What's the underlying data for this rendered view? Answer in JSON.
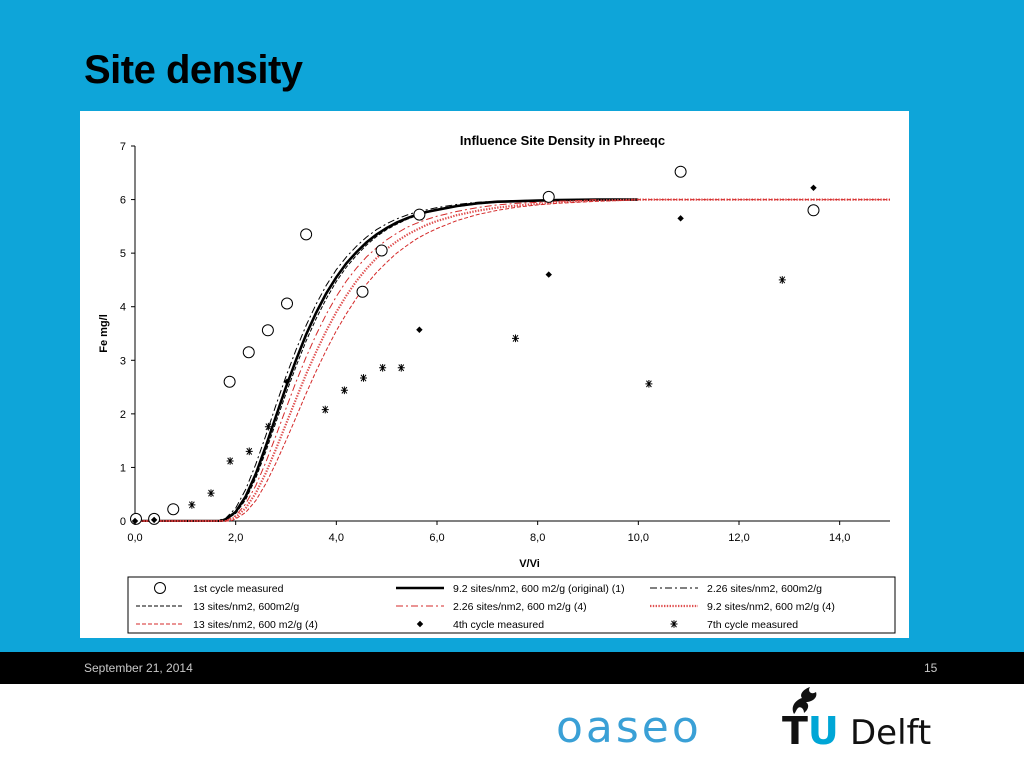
{
  "slide": {
    "title": "Site density",
    "footer_date": "September 21, 2014",
    "page_number": "15",
    "logo_left": "oaseo",
    "logo_right_tu": "TU",
    "logo_right_delft": "Delft",
    "background_color": "#0ea5d9"
  },
  "chart_data": {
    "type": "scatter",
    "title": "Influence Site Density in Phreeqc",
    "xlabel": "V/Vi",
    "ylabel": "Fe mg/l",
    "xlim": [
      0,
      15
    ],
    "ylim": [
      0,
      7
    ],
    "xticks": [
      0,
      2,
      4,
      6,
      8,
      10,
      12,
      14
    ],
    "xtick_labels": [
      "0,0",
      "2,0",
      "4,0",
      "6,0",
      "8,0",
      "10,0",
      "12,0",
      "14,0"
    ],
    "yticks": [
      0,
      1,
      2,
      3,
      4,
      5,
      6,
      7
    ],
    "ytick_labels": [
      "0",
      "1",
      "2",
      "3",
      "4",
      "5",
      "6",
      "7"
    ],
    "grid": false,
    "legend_position": "bottom",
    "series": [
      {
        "name": "1st cycle measured",
        "kind": "marker",
        "marker": "circle",
        "color": "#000000",
        "x": [
          0.02,
          0.38,
          0.76,
          1.88,
          2.26,
          2.64,
          3.02,
          3.4,
          4.52,
          4.9,
          5.65,
          8.22,
          10.84,
          13.48
        ],
        "y": [
          0.04,
          0.04,
          0.22,
          2.6,
          3.15,
          3.56,
          4.06,
          5.35,
          4.28,
          5.05,
          5.72,
          6.05,
          6.52,
          5.8
        ]
      },
      {
        "name": "9.2 sites/nm2, 600 m2/g (original) (1)",
        "kind": "line",
        "dash": "solid",
        "color": "#000000",
        "width": 2.6,
        "x": [
          0,
          1.7,
          1.8,
          2.0,
          2.2,
          2.4,
          2.6,
          2.8,
          3.0,
          3.2,
          3.4,
          3.6,
          3.8,
          4.0,
          4.2,
          4.4,
          4.6,
          4.8,
          5.0,
          5.2,
          5.4,
          5.6,
          5.8,
          6.0,
          6.4,
          6.8,
          7.2,
          7.6,
          8.0,
          8.4,
          8.8,
          9.2,
          9.6,
          10.0
        ],
        "y": [
          0,
          0,
          0.03,
          0.17,
          0.46,
          0.88,
          1.4,
          1.95,
          2.5,
          3.01,
          3.48,
          3.89,
          4.25,
          4.55,
          4.81,
          5.02,
          5.2,
          5.35,
          5.47,
          5.57,
          5.65,
          5.72,
          5.77,
          5.81,
          5.88,
          5.93,
          5.96,
          5.97,
          5.98,
          5.99,
          5.995,
          6.0,
          6.0,
          6.0
        ]
      },
      {
        "name": "2.26 sites/nm2, 600m2/g",
        "kind": "line",
        "dash": "dash-dot",
        "color": "#000000",
        "width": 1,
        "x": [
          0,
          1.6,
          1.8,
          2.0,
          2.2,
          2.4,
          2.6,
          2.8,
          3.0,
          3.2,
          3.4,
          3.6,
          3.8,
          4.0,
          4.2,
          4.4,
          4.6,
          4.8,
          5.0,
          5.2,
          5.4,
          5.6,
          5.8,
          6.0,
          6.4,
          6.8,
          7.2,
          7.6,
          8.0,
          8.4,
          8.8
        ],
        "y": [
          0,
          0,
          0.05,
          0.24,
          0.59,
          1.06,
          1.6,
          2.16,
          2.7,
          3.2,
          3.65,
          4.05,
          4.4,
          4.69,
          4.93,
          5.13,
          5.3,
          5.44,
          5.55,
          5.64,
          5.71,
          5.77,
          5.81,
          5.85,
          5.91,
          5.95,
          5.97,
          5.98,
          5.99,
          6.0,
          6.0
        ]
      },
      {
        "name": "13 sites/nm2, 600m2/g",
        "kind": "line",
        "dash": "dash",
        "color": "#000000",
        "width": 1,
        "x": [
          0,
          1.7,
          1.8,
          2.0,
          2.2,
          2.4,
          2.6,
          2.8,
          3.0,
          3.2,
          3.4,
          3.6,
          3.8,
          4.0,
          4.2,
          4.4,
          4.6,
          4.8,
          5.0,
          5.2,
          5.4,
          5.6,
          5.8,
          6.0,
          6.4,
          6.8,
          7.2,
          7.6,
          8.0,
          8.4,
          8.8
        ],
        "y": [
          0,
          0,
          0.02,
          0.14,
          0.4,
          0.8,
          1.3,
          1.84,
          2.38,
          2.89,
          3.36,
          3.78,
          4.15,
          4.47,
          4.74,
          4.96,
          5.15,
          5.31,
          5.44,
          5.54,
          5.63,
          5.7,
          5.76,
          5.8,
          5.87,
          5.92,
          5.95,
          5.97,
          5.98,
          5.99,
          6.0
        ]
      },
      {
        "name": "2.26 sites/nm2, 600 m2/g (4)",
        "kind": "line",
        "dash": "dash-dot",
        "color": "#d42a2a",
        "width": 1,
        "x": [
          0,
          1.8,
          2.0,
          2.2,
          2.4,
          2.6,
          2.8,
          3.0,
          3.2,
          3.4,
          3.6,
          3.8,
          4.0,
          4.2,
          4.4,
          4.6,
          4.8,
          5.0,
          5.2,
          5.4,
          5.6,
          5.8,
          6.0,
          6.4,
          6.8,
          7.2,
          7.6,
          8.0,
          8.4,
          8.8,
          9.2
        ],
        "y": [
          0,
          0,
          0.1,
          0.32,
          0.66,
          1.1,
          1.59,
          2.1,
          2.6,
          3.06,
          3.48,
          3.86,
          4.19,
          4.48,
          4.72,
          4.93,
          5.1,
          5.25,
          5.37,
          5.48,
          5.56,
          5.63,
          5.69,
          5.78,
          5.85,
          5.9,
          5.93,
          5.95,
          5.97,
          5.98,
          6.0
        ]
      },
      {
        "name": "9.2 sites/nm2, 600 m2/g (4)",
        "kind": "line",
        "dash": "dotted",
        "color": "#e05050",
        "width": 2.2,
        "x": [
          0,
          1.8,
          2.0,
          2.2,
          2.4,
          2.6,
          2.8,
          3.0,
          3.2,
          3.4,
          3.6,
          3.8,
          4.0,
          4.2,
          4.4,
          4.6,
          4.8,
          5.0,
          5.2,
          5.4,
          5.6,
          5.8,
          6.0,
          6.4,
          6.8,
          7.2,
          7.6,
          8.0,
          8.4,
          8.8,
          9.2,
          9.6,
          10.0,
          15.0
        ],
        "y": [
          0,
          0,
          0.07,
          0.24,
          0.52,
          0.9,
          1.34,
          1.81,
          2.28,
          2.74,
          3.16,
          3.55,
          3.9,
          4.21,
          4.48,
          4.71,
          4.91,
          5.08,
          5.22,
          5.34,
          5.44,
          5.53,
          5.6,
          5.71,
          5.79,
          5.85,
          5.89,
          5.92,
          5.95,
          5.97,
          5.98,
          5.99,
          6.0,
          6.0
        ]
      },
      {
        "name": "13 sites/nm2, 600 m2/g (4)",
        "kind": "line",
        "dash": "dash",
        "color": "#d42a2a",
        "width": 1,
        "x": [
          0,
          1.9,
          2.0,
          2.2,
          2.4,
          2.6,
          2.8,
          3.0,
          3.2,
          3.4,
          3.6,
          3.8,
          4.0,
          4.2,
          4.4,
          4.6,
          4.8,
          5.0,
          5.2,
          5.4,
          5.6,
          5.8,
          6.0,
          6.4,
          6.8,
          7.2,
          7.6,
          8.0,
          8.4,
          8.8,
          9.2,
          9.6,
          10.0,
          15.0
        ],
        "y": [
          0,
          0,
          0.04,
          0.16,
          0.38,
          0.7,
          1.08,
          1.5,
          1.94,
          2.38,
          2.8,
          3.19,
          3.55,
          3.87,
          4.16,
          4.42,
          4.64,
          4.83,
          5.0,
          5.14,
          5.27,
          5.37,
          5.46,
          5.61,
          5.72,
          5.8,
          5.86,
          5.9,
          5.93,
          5.95,
          5.97,
          5.98,
          6.0,
          6.0
        ]
      },
      {
        "name": "4th cycle measured",
        "kind": "marker",
        "marker": "diamond",
        "color": "#000000",
        "x": [
          0.0,
          0.38,
          3.02,
          5.65,
          8.22,
          10.84,
          13.48
        ],
        "y": [
          0.0,
          0.02,
          2.6,
          3.57,
          4.6,
          5.65,
          6.22
        ]
      },
      {
        "name": "7th cycle measured",
        "kind": "marker",
        "marker": "asterisk",
        "color": "#000000",
        "x": [
          1.13,
          1.51,
          1.89,
          2.27,
          2.65,
          3.78,
          4.16,
          4.54,
          4.92,
          5.29,
          7.56,
          10.21,
          12.86
        ],
        "y": [
          0.3,
          0.52,
          1.12,
          1.3,
          1.76,
          2.08,
          2.44,
          2.67,
          2.86,
          2.86,
          3.41,
          2.56,
          4.5
        ]
      }
    ],
    "legend_order": [
      0,
      1,
      2,
      3,
      4,
      5,
      6,
      7,
      8
    ]
  }
}
